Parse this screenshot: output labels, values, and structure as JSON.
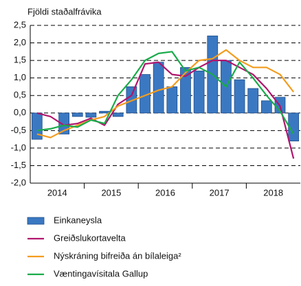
{
  "chart_data": {
    "type": "bar_line",
    "y_axis_label": "Fjöldi staðalfrávika",
    "categories": [
      null,
      null,
      null,
      null,
      null,
      null,
      null,
      null,
      null,
      null,
      null,
      null,
      null,
      null,
      null,
      null,
      null,
      null,
      null,
      null
    ],
    "year_labels": [
      "2014",
      "2015",
      "2016",
      "2017",
      "2018"
    ],
    "series": [
      {
        "name": "Einkaneysla",
        "type": "bar",
        "color": "#3b78c2",
        "values": [
          -0.75,
          0,
          -0.6,
          -0.1,
          -0.12,
          0.05,
          -0.1,
          0.75,
          1.1,
          1.45,
          0.75,
          1.3,
          1.2,
          2.2,
          1.5,
          0.95,
          0.7,
          0.35,
          0.45,
          -0.8
        ]
      },
      {
        "name": "Greiðslukortavelta",
        "type": "line",
        "color": "#b0156c",
        "values": [
          0,
          -0.1,
          -0.35,
          -0.3,
          -0.15,
          -0.35,
          0.25,
          0.5,
          1.4,
          1.45,
          1.1,
          1.05,
          1.3,
          1.5,
          1.5,
          1.3,
          1.1,
          0.7,
          0.2,
          -1.3
        ]
      },
      {
        "name": "Nýskráning bifreiða án bílaleiga²",
        "type": "line",
        "color": "#f39c1e",
        "values": [
          -0.6,
          -0.7,
          -0.5,
          -0.35,
          -0.2,
          -0.1,
          0.2,
          0.35,
          0.5,
          0.65,
          0.75,
          1.15,
          1.5,
          1.55,
          1.8,
          1.5,
          1.3,
          1.3,
          1.1,
          0.6
        ]
      },
      {
        "name": "Væntingavísitala Gallup",
        "type": "line",
        "color": "#1aab4a",
        "values": [
          -0.5,
          -0.45,
          -0.35,
          -0.4,
          -0.2,
          -0.3,
          0.5,
          0.95,
          1.5,
          1.7,
          1.75,
          1.2,
          1.3,
          1.1,
          0.75,
          1.45,
          1.0,
          0.5,
          0.05,
          -0.6
        ]
      }
    ],
    "ylim": [
      -2.0,
      2.5
    ],
    "yticks": [
      {
        "value": -2.0,
        "label": "-2,0"
      },
      {
        "value": -1.5,
        "label": "-1,5"
      },
      {
        "value": -1.0,
        "label": "-1,0"
      },
      {
        "value": -0.5,
        "label": "-0,5"
      },
      {
        "value": 0,
        "label": "0,0"
      },
      {
        "value": 0.5,
        "label": "0,5"
      },
      {
        "value": 1.0,
        "label": "1,0"
      },
      {
        "value": 1.5,
        "label": "1,5"
      },
      {
        "value": 2.0,
        "label": "2,0"
      },
      {
        "value": 2.5,
        "label": "2,5"
      }
    ],
    "grid": true
  }
}
